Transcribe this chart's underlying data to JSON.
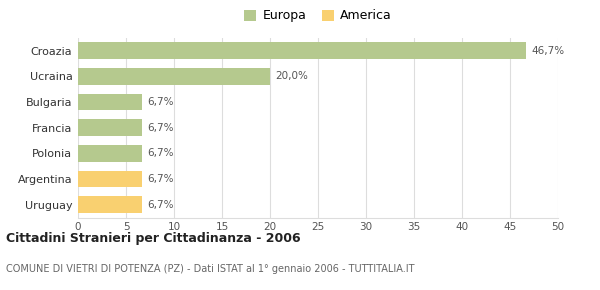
{
  "categories": [
    "Croazia",
    "Ucraina",
    "Bulgaria",
    "Francia",
    "Polonia",
    "Argentina",
    "Uruguay"
  ],
  "values": [
    46.7,
    20.0,
    6.7,
    6.7,
    6.7,
    6.7,
    6.7
  ],
  "labels": [
    "46,7%",
    "20,0%",
    "6,7%",
    "6,7%",
    "6,7%",
    "6,7%",
    "6,7%"
  ],
  "colors": [
    "#b5c98e",
    "#b5c98e",
    "#b5c98e",
    "#b5c98e",
    "#b5c98e",
    "#f9d070",
    "#f9d070"
  ],
  "europa_color": "#b5c98e",
  "america_color": "#f9d070",
  "title": "Cittadini Stranieri per Cittadinanza - 2006",
  "subtitle": "COMUNE DI VIETRI DI POTENZA (PZ) - Dati ISTAT al 1° gennaio 2006 - TUTTITALIA.IT",
  "xlim": [
    0,
    50
  ],
  "xticks": [
    0,
    5,
    10,
    15,
    20,
    25,
    30,
    35,
    40,
    45,
    50
  ],
  "background_color": "#ffffff",
  "bar_height": 0.65,
  "grid_color": "#dddddd"
}
